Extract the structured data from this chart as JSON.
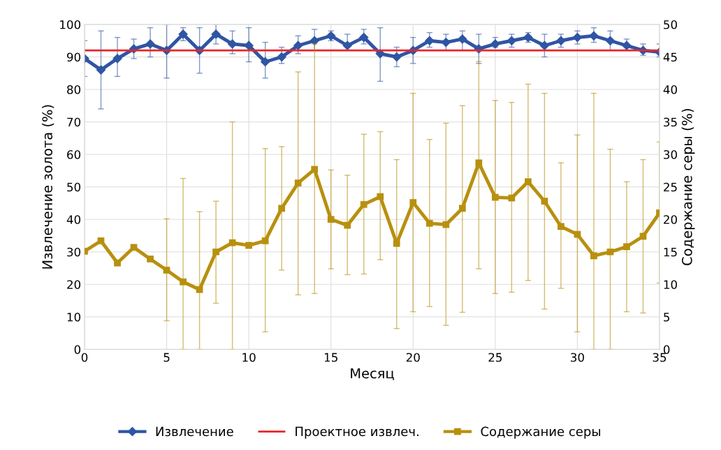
{
  "chart_data": {
    "type": "line",
    "xlabel": "Месяц",
    "ylabel": "Извлечение золота (%)",
    "y2label": "Содержание серы (%)",
    "x": [
      0,
      1,
      2,
      3,
      4,
      5,
      6,
      7,
      8,
      9,
      10,
      11,
      12,
      13,
      14,
      15,
      16,
      17,
      18,
      19,
      20,
      21,
      22,
      23,
      24,
      25,
      26,
      27,
      28,
      29,
      30,
      31,
      32,
      33,
      34,
      35
    ],
    "xlim": [
      0,
      35
    ],
    "xticks": [
      0,
      5,
      10,
      15,
      20,
      25,
      30,
      35
    ],
    "ylim": [
      0,
      100
    ],
    "yticks": [
      0,
      10,
      20,
      30,
      40,
      50,
      60,
      70,
      80,
      90,
      100
    ],
    "y2lim": [
      0,
      50
    ],
    "y2ticks": [
      0,
      5,
      10,
      15,
      20,
      25,
      30,
      35,
      40,
      45,
      50
    ],
    "grid": true,
    "legend": "bottom",
    "line_style": "solid",
    "series": [
      {
        "name": "Извлечение",
        "color": "#2f55a4",
        "marker": "diamond",
        "values": [
          89.5,
          86,
          89.5,
          92.5,
          94,
          92,
          97,
          92,
          97,
          94,
          93.5,
          88.5,
          90,
          93.5,
          95,
          96.5,
          93.5,
          96,
          91,
          90,
          92,
          95,
          94.5,
          95.5,
          92.5,
          94,
          95,
          96,
          93.5,
          95,
          96,
          96.5,
          95,
          93.5,
          92,
          91.5
        ],
        "errors": [
          [
            84,
            95
          ],
          [
            74,
            98
          ],
          [
            84,
            96
          ],
          [
            89.5,
            95.5
          ],
          [
            90,
            99
          ],
          [
            83.5,
            100
          ],
          [
            95,
            99
          ],
          [
            85,
            99
          ],
          [
            94,
            100
          ],
          [
            91,
            98
          ],
          [
            88.5,
            99
          ],
          [
            83.5,
            94.5
          ],
          [
            88,
            93
          ],
          [
            91,
            96.5
          ],
          [
            92,
            98.5
          ],
          [
            95,
            98
          ],
          [
            92,
            97
          ],
          [
            94,
            98.5
          ],
          [
            82.5,
            99
          ],
          [
            87,
            93
          ],
          [
            88,
            96
          ],
          [
            93,
            97.5
          ],
          [
            92,
            97
          ],
          [
            92,
            98
          ],
          [
            88,
            97
          ],
          [
            93,
            96
          ],
          [
            93,
            97
          ],
          [
            94.5,
            97.5
          ],
          [
            90,
            97
          ],
          [
            93,
            97
          ],
          [
            94,
            98
          ],
          [
            94.5,
            99
          ],
          [
            92,
            98
          ],
          [
            92,
            95.5
          ],
          [
            90.5,
            94
          ],
          [
            90,
            94
          ]
        ]
      },
      {
        "name": "Проектное извлеч.",
        "color": "#e8262a",
        "marker": "none",
        "values": [
          92,
          92,
          92,
          92,
          92,
          92,
          92,
          92,
          92,
          92,
          92,
          92,
          92,
          92,
          92,
          92,
          92,
          92,
          92,
          92,
          92,
          92,
          92,
          92,
          92,
          92,
          92,
          92,
          92,
          92,
          92,
          92,
          92,
          92,
          92,
          92
        ]
      },
      {
        "name": "Содержание серы",
        "color": "#b8900f",
        "marker": "square",
        "axis": "y2",
        "values": [
          15.1,
          16.7,
          13.3,
          15.7,
          13.9,
          12.2,
          10.4,
          9.2,
          15,
          16.4,
          16,
          16.7,
          21.7,
          25.6,
          27.7,
          20,
          19.1,
          22.3,
          23.5,
          16.3,
          22.6,
          19.4,
          19.2,
          21.7,
          28.7,
          23.4,
          23.3,
          25.8,
          22.8,
          18.9,
          17.7,
          14.4,
          15,
          15.8,
          17.4,
          21
        ],
        "errors": [
          null,
          null,
          null,
          null,
          null,
          [
            4.4,
            20.1
          ],
          [
            0,
            26.3
          ],
          [
            0,
            21.2
          ],
          [
            7.1,
            22.8
          ],
          [
            0,
            35
          ],
          null,
          [
            2.7,
            30.9
          ],
          [
            12.2,
            31.2
          ],
          [
            8.4,
            42.7
          ],
          [
            8.6,
            47
          ],
          [
            12.4,
            27.6
          ],
          [
            11.5,
            26.8
          ],
          [
            11.6,
            33.1
          ],
          [
            13.8,
            33.5
          ],
          [
            3.2,
            29.2
          ],
          [
            5.8,
            39.4
          ],
          [
            6.6,
            32.3
          ],
          [
            3.7,
            34.8
          ],
          [
            5.7,
            37.5
          ],
          [
            12.4,
            44.3
          ],
          [
            8.6,
            38.3
          ],
          [
            8.8,
            38
          ],
          [
            10.6,
            40.8
          ],
          [
            6.2,
            39.4
          ],
          [
            9.4,
            28.7
          ],
          [
            2.7,
            33
          ],
          [
            0,
            39.4
          ],
          [
            0,
            30.8
          ],
          [
            5.8,
            25.8
          ],
          [
            5.6,
            29.2
          ],
          [
            10.2,
            31.9
          ]
        ]
      }
    ]
  }
}
